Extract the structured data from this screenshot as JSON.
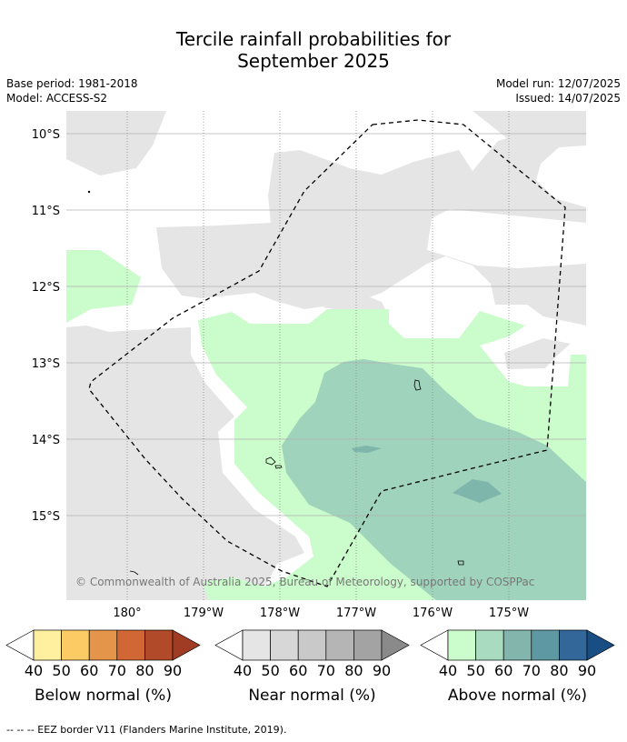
{
  "header": {
    "title_line1": "Tercile rainfall probabilities for",
    "title_line2": "September 2025",
    "base_period": "Base period: 1981-2018",
    "model": "Model: ACCESS-S2",
    "model_run": "Model run: 12/07/2025",
    "issued": "Issued: 14/07/2025"
  },
  "map": {
    "lat_labels": [
      "10°S",
      "11°S",
      "12°S",
      "13°S",
      "14°S",
      "15°S"
    ],
    "lon_labels": [
      "180°",
      "179°W",
      "178°W",
      "177°W",
      "176°W",
      "175°W"
    ],
    "copyright": "© Commonwealth of Australia 2025, Bureau of Meteorology, supported by COSPPac",
    "colors": {
      "near_normal_fill": "#e5e5e5",
      "above_40_50": "#cbfccb",
      "above_50_60": "#9fd3bb",
      "above_60_70": "#7fb6ab",
      "eez_line": "#000000"
    }
  },
  "legends": [
    {
      "name": "Below normal (%)",
      "ticks": [
        "40",
        "50",
        "60",
        "70",
        "80",
        "90"
      ],
      "colors": [
        "#fff0a0",
        "#fdcb64",
        "#e49549",
        "#d06735",
        "#b14a29",
        "#a03c24"
      ]
    },
    {
      "name": "Near normal (%)",
      "ticks": [
        "40",
        "50",
        "60",
        "70",
        "80",
        "90"
      ],
      "colors": [
        "#e5e5e5",
        "#d7d7d7",
        "#c9c9c9",
        "#b5b5b5",
        "#a3a3a3",
        "#8a8a8a"
      ]
    },
    {
      "name": "Above normal (%)",
      "ticks": [
        "40",
        "50",
        "60",
        "70",
        "80",
        "90"
      ],
      "colors": [
        "#cbfccb",
        "#a8dbbf",
        "#82b6ac",
        "#5e98a3",
        "#33679a",
        "#184e84"
      ]
    }
  ],
  "footnote": "--  --  -- EEZ border V11 (Flanders Marine Institute, 2019)."
}
